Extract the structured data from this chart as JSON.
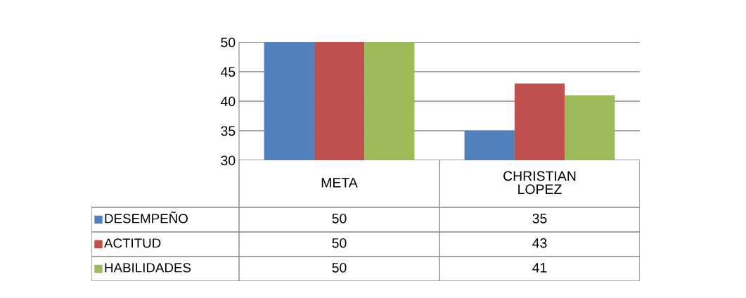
{
  "chart_data": {
    "type": "bar",
    "categories": [
      "META",
      "CHRISTIAN\nLOPEZ"
    ],
    "series": [
      {
        "name": "DESEMPEÑO",
        "color": "#4f81bd",
        "values": [
          50,
          35
        ]
      },
      {
        "name": "ACTITUD",
        "color": "#c0504d",
        "values": [
          50,
          43
        ]
      },
      {
        "name": "HABILIDADES",
        "color": "#9bbb59",
        "values": [
          50,
          41
        ]
      }
    ],
    "ylim": [
      30,
      50
    ],
    "yticks": [
      30,
      35,
      40,
      45,
      50
    ],
    "grid": "y",
    "data_labels": true,
    "legend": "bottom left"
  }
}
